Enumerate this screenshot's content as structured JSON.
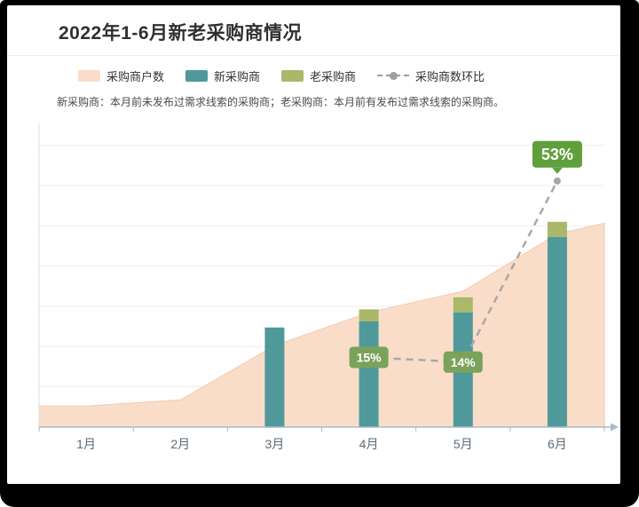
{
  "header": {
    "title": "2022年1-6月新老采购商情况"
  },
  "legend": {
    "items": [
      {
        "label": "采购商户数",
        "color": "#f9ddc9"
      },
      {
        "label": "新采购商",
        "color": "#4f999b"
      },
      {
        "label": "老采购商",
        "color": "#a9b869"
      },
      {
        "label": "采购商数环比",
        "color": "#9e9e9e"
      }
    ]
  },
  "note": {
    "text": "新采购商：本月前未发布过需求线索的采购商；老采购商：本月前有发布过需求线索的采购商。"
  },
  "chart_data": {
    "type": "combo",
    "categories": [
      "1月",
      "2月",
      "3月",
      "4月",
      "5月",
      "6月"
    ],
    "series": [
      {
        "name": "采购商户数",
        "type": "area",
        "color": "#f9ddc9",
        "edge_color": "#f3cbae",
        "values": [
          7,
          9,
          27,
          38,
          45,
          64
        ]
      },
      {
        "name": "新采购商",
        "type": "bar",
        "color": "#4f999b",
        "values": [
          null,
          null,
          33,
          35,
          38,
          63
        ]
      },
      {
        "name": "老采购商",
        "type": "bar",
        "stack": true,
        "color": "#a9b869",
        "values": [
          null,
          null,
          null,
          4,
          5,
          5
        ]
      },
      {
        "name": "采购商数环比",
        "type": "line",
        "dashed": true,
        "color": "#a8a8a8",
        "values": [
          null,
          null,
          null,
          15,
          14,
          53
        ],
        "point_labels": [
          null,
          null,
          null,
          "15%",
          "14%",
          "53%"
        ],
        "label_colors": [
          null,
          null,
          null,
          "#7ba25a",
          "#7ba25a",
          "#5fa03d"
        ],
        "label_emphasis": [
          null,
          null,
          null,
          false,
          false,
          true
        ]
      }
    ],
    "ylim": [
      0,
      100
    ],
    "y2lim": [
      0,
      65
    ],
    "grid": true,
    "legend_position": "top",
    "axis_color": "#a9bac7",
    "grid_color": "#ededed",
    "tick_label_color": "#5b6b7a"
  }
}
